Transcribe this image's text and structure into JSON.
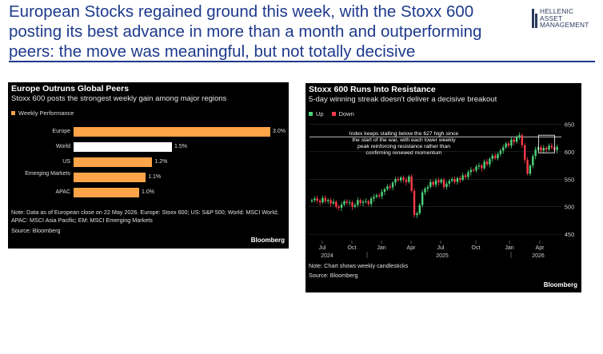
{
  "headline": {
    "line1": "European Stocks regained ground this week, with the Stoxx 600",
    "line2": "posting its best advance in more than a month and outperforming",
    "line3": "peers: the move was meaningful, but not totally decisive"
  },
  "logo": {
    "line1": "HELLENIC",
    "line2": "ASSET",
    "line3": "MANAGEMENT"
  },
  "chart_data": [
    {
      "type": "bar",
      "title": "Europe Outruns Global Peers",
      "subtitle": "Stoxx 600 posts the strongest weekly gain among major regions",
      "legend": [
        "Weekly Performance"
      ],
      "categories": [
        "Europe",
        "World",
        "US",
        "Emerging Markets",
        "APAC"
      ],
      "values": [
        3.0,
        1.5,
        1.2,
        1.1,
        1.0
      ],
      "value_labels": [
        "3.0%",
        "1.5%",
        "1.2%",
        "1.1%",
        "1.0%"
      ],
      "colors": [
        "#ffa448",
        "#ffffff",
        "#ffa448",
        "#ffa448",
        "#ffa448"
      ],
      "xlim": [
        0,
        3.0
      ],
      "note": "Note: Data as of European close on 22 May 2026. Europe: Stoxx 600; US: S&P 500; World: MSCI World; APAC: MSCI Asia Pacific; EM: MSCI Emerging Markets",
      "source": "Source: Bloomberg",
      "brand": "Bloomberg"
    },
    {
      "type": "candlestick",
      "title": "Stoxx 600 Runs Into Resistance",
      "subtitle": "5-day winning streak doesn't deliver a decisive breakout",
      "legend": [
        "Up",
        "Down"
      ],
      "colors": {
        "up": "#4ed47a",
        "down": "#ff3b4a"
      },
      "ylim": [
        440,
        655
      ],
      "yticks": [
        450,
        500,
        550,
        600,
        650
      ],
      "xtick_labels": [
        "Jul",
        "Oct",
        "Jan",
        "Apr",
        "Jul",
        "Oct",
        "Jan",
        "Apr"
      ],
      "year_labels": [
        "2024",
        "2025",
        "2026"
      ],
      "resistance_level": 627,
      "annotation": "Index keeps stalling below the 627 high since the start of the war, with each lower weekly peak reinforcing resistance rather than confirming renewed momentum",
      "close": [
        512,
        515,
        511,
        508,
        516,
        510,
        512,
        506,
        509,
        500,
        498,
        504,
        510,
        507,
        508,
        500,
        503,
        512,
        507,
        509,
        510,
        505,
        515,
        518,
        521,
        519,
        527,
        532,
        537,
        535,
        544,
        550,
        548,
        553,
        549,
        545,
        555,
        529,
        485,
        488,
        503,
        526,
        533,
        536,
        545,
        540,
        548,
        544,
        549,
        536,
        542,
        547,
        550,
        545,
        552,
        549,
        557,
        554,
        563,
        567,
        566,
        573,
        575,
        570,
        582,
        577,
        587,
        593,
        588,
        596,
        602,
        608,
        615,
        611,
        622,
        618,
        626,
        630,
        612,
        585,
        560,
        575,
        592,
        604,
        608,
        602,
        607,
        604,
        611,
        608,
        603,
        609
      ],
      "note": "Note: Chart shows weekly candlesticks",
      "source": "Source: Bloomberg",
      "brand": "Bloomberg"
    }
  ]
}
